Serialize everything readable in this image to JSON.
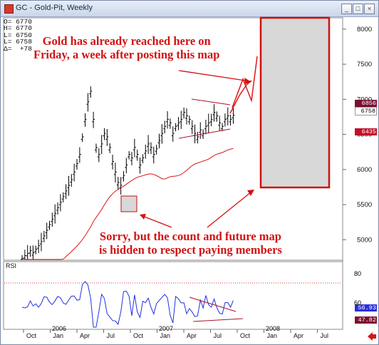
{
  "window": {
    "title": "GC - Gold-Pit, Weekly",
    "buttons": [
      "_",
      "□",
      "×"
    ]
  },
  "ohlc": [
    {
      "key": "O=",
      "value": "6770"
    },
    {
      "key": "H=",
      "value": "6770"
    },
    {
      "key": "L=",
      "value": "6750"
    },
    {
      "key": "L=",
      "value": "6758"
    },
    {
      "key": "Δ=",
      "value": "+78"
    }
  ],
  "annotations": {
    "top": [
      "Gold has already reached here on",
      "Friday, a week after posting this map"
    ],
    "bottom": [
      "Sorry, but the count and future map",
      "is hidden to respect paying members"
    ]
  },
  "price_axis": {
    "ticks": [
      "8000",
      "7500",
      "7000",
      "6500",
      "6000",
      "5500",
      "5000"
    ]
  },
  "price_tags": [
    {
      "value": "6856",
      "bg": "#7a1030",
      "fg": "#ffffff"
    },
    {
      "value": "6758",
      "bg": "#ffffff",
      "fg": "#000000"
    },
    {
      "value": "6435",
      "bg": "#c0102a",
      "fg": "#ffffff"
    }
  ],
  "rsi": {
    "label": "RSI",
    "axis_ticks": [
      "80",
      "60"
    ],
    "tags": [
      {
        "value": "56.93",
        "bg": "#2b2fd8",
        "fg": "#ffffff"
      },
      {
        "value": "47.82",
        "bg": "#7a1030",
        "fg": "#ffffff"
      }
    ]
  },
  "time_axis": {
    "months": [
      "Oct",
      "Jan",
      "Apr",
      "Jul",
      "Oct",
      "Jan",
      "Apr",
      "Jul",
      "Oct",
      "Jan",
      "Apr",
      "Jul"
    ],
    "years": [
      "2006",
      "2007",
      "2008"
    ]
  },
  "colors": {
    "bars": "#000000",
    "ma": "#d81818",
    "rsi": "#2030e0",
    "annotation": "#d21212",
    "box": "#d8d8d8"
  },
  "chart_data": {
    "type": "ohlc",
    "title": "GC - Gold-Pit, Weekly",
    "ylim": [
      4800,
      8100
    ],
    "price_series": [
      4720,
      4760,
      4790,
      4830,
      4800,
      4850,
      4900,
      4960,
      5040,
      5120,
      5200,
      5280,
      5360,
      5440,
      5520,
      5600,
      5680,
      5760,
      5840,
      5950,
      6070,
      6200,
      6450,
      6700,
      6950,
      7100,
      6700,
      6300,
      6200,
      6350,
      6500,
      6450,
      6300,
      6100,
      5950,
      5800,
      5760,
      5900,
      6050,
      6200,
      6150,
      6300,
      6200,
      6050,
      6150,
      6250,
      6350,
      6300,
      6200,
      6280,
      6400,
      6500,
      6600,
      6700,
      6650,
      6500,
      6600,
      6650,
      6700,
      6800,
      6750,
      6700,
      6600,
      6500,
      6450,
      6550,
      6500,
      6600,
      6650,
      6700,
      6800,
      6750,
      6650,
      6600,
      6700,
      6750,
      6700,
      6758
    ]
  }
}
